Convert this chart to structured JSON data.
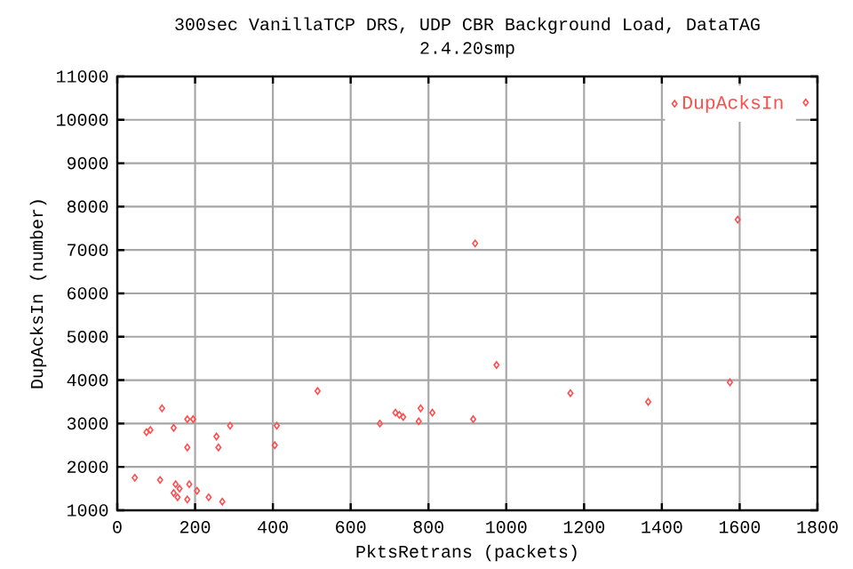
{
  "chart_data": {
    "type": "scatter",
    "title": "300sec VanillaTCP DRS, UDP CBR Background Load, DataTAG",
    "subtitle": "2.4.20smp",
    "xlabel": "PktsRetrans (packets)",
    "ylabel": "DupAcksIn (number)",
    "xlim": [
      0,
      1800
    ],
    "xticks": [
      0,
      200,
      400,
      600,
      800,
      1000,
      1200,
      1400,
      1600,
      1800
    ],
    "ylim": [
      1000,
      11000
    ],
    "yticks": [
      1000,
      2000,
      3000,
      4000,
      5000,
      6000,
      7000,
      8000,
      9000,
      10000,
      11000
    ],
    "grid": true,
    "legend": "top right",
    "marker": "diamond",
    "series": [
      {
        "name": "DupAcksIn",
        "color": "#ff4d4d",
        "x": [
          1770,
          1595,
          1165,
          1365,
          1575,
          920,
          975,
          515,
          115,
          195,
          180,
          145,
          85,
          75,
          290,
          255,
          410,
          405,
          180,
          260,
          45,
          110,
          150,
          185,
          160,
          145,
          205,
          155,
          180,
          235,
          270,
          715,
          735,
          725,
          780,
          810,
          675,
          775,
          915
        ],
        "values": [
          10400,
          7700,
          3700,
          3500,
          3950,
          7150,
          4350,
          3750,
          3350,
          3100,
          3100,
          2900,
          2850,
          2800,
          2950,
          2700,
          2950,
          2500,
          2450,
          2450,
          1750,
          1700,
          1600,
          1600,
          1500,
          1400,
          1450,
          1300,
          1250,
          1300,
          1200,
          3250,
          3150,
          3200,
          3350,
          3250,
          3000,
          3050,
          3100
        ]
      }
    ]
  }
}
